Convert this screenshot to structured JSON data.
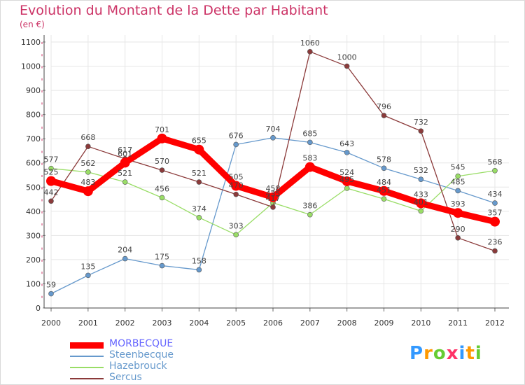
{
  "title": "Evolution du Montant de la Dette par Habitant",
  "subtitle": "(en €)",
  "logo": {
    "text": "Proxiti",
    "colors": [
      "#3399ff",
      "#ff9900",
      "#66cc33",
      "#ff3366",
      "#3399ff",
      "#ff9900",
      "#66cc33"
    ]
  },
  "chart_data": {
    "type": "line",
    "x": [
      2000,
      2001,
      2002,
      2003,
      2004,
      2005,
      2006,
      2007,
      2008,
      2009,
      2010,
      2011,
      2012
    ],
    "ylim": [
      0,
      1100
    ],
    "yticks": [
      0,
      100,
      200,
      300,
      400,
      500,
      600,
      700,
      800,
      900,
      1000,
      1100
    ],
    "grid": true,
    "legend_position": "bottom-left",
    "series": [
      {
        "name": "Steenbecque",
        "color": "#6699cc",
        "values": [
          59,
          135,
          204,
          175,
          158,
          676,
          704,
          685,
          643,
          578,
          532,
          485,
          434
        ]
      },
      {
        "name": "Hazebrouck",
        "color": "#99dd66",
        "values": [
          577,
          562,
          521,
          456,
          374,
          303,
          435,
          386,
          495,
          451,
          401,
          545,
          568
        ]
      },
      {
        "name": "Sercus",
        "color": "#8b3a3a",
        "values": [
          442,
          668,
          617,
          570,
          521,
          470,
          417,
          1060,
          1000,
          796,
          732,
          290,
          236
        ]
      },
      {
        "name": "MORBECQUE",
        "color": "#ff0000",
        "values": [
          525,
          483,
          601,
          701,
          655,
          505,
          458,
          583,
          524,
          484,
          433,
          393,
          357
        ]
      }
    ],
    "legend": [
      {
        "name": "MORBECQUE",
        "color": "#ff0000",
        "label_color": "#6666ff"
      },
      {
        "name": "Steenbecque",
        "color": "#6699cc",
        "label_color": "#6699cc"
      },
      {
        "name": "Hazebrouck",
        "color": "#99dd66",
        "label_color": "#6699cc"
      },
      {
        "name": "Sercus",
        "color": "#8b3a3a",
        "label_color": "#6699cc"
      }
    ]
  }
}
